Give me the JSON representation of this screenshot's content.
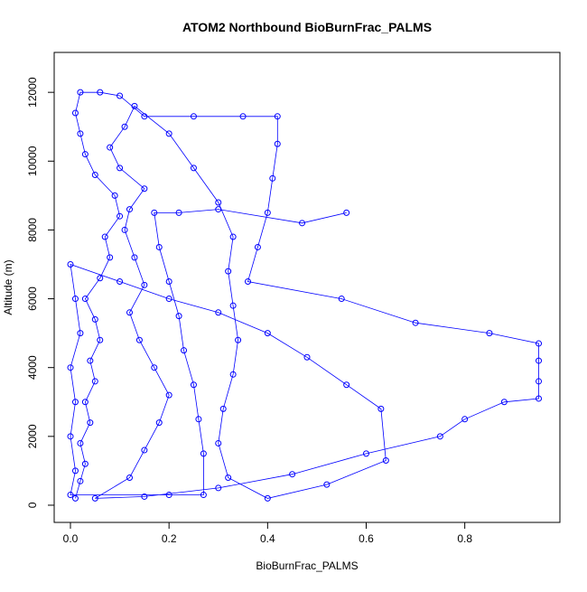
{
  "chart_data": {
    "type": "scatter",
    "title": "ATOM2 Northbound BioBurnFrac_PALMS",
    "x_label": "BioBurnFrac_PALMS",
    "y_label": "Altitude (m)",
    "color": "#0000ff",
    "xlim": [
      -0.033,
      0.993
    ],
    "ylim": [
      -500,
      13160
    ],
    "xticks": [
      {
        "value": 0,
        "label": "0.0"
      },
      {
        "value": 0.2,
        "label": "0.2"
      },
      {
        "value": 0.4,
        "label": "0.4"
      },
      {
        "value": 0.6,
        "label": "0.6"
      },
      {
        "value": 0.8,
        "label": "0.8"
      }
    ],
    "yticks": [
      0,
      2000,
      4000,
      6000,
      8000,
      10000,
      12000
    ],
    "x": [
      0.01,
      0.02,
      0.03,
      0.02,
      0.04,
      0.03,
      0.05,
      0.04,
      0.06,
      0.05,
      0.03,
      0.06,
      0.08,
      0.07,
      0.1,
      0.09,
      0.05,
      0.03,
      0.02,
      0.01,
      0.02,
      0.06,
      0.1,
      0.15,
      0.25,
      0.35,
      0.42,
      0.42,
      0.41,
      0.4,
      0.38,
      0.36,
      0.55,
      0.7,
      0.85,
      0.95,
      0.95,
      0.95,
      0.95,
      0.88,
      0.8,
      0.75,
      0.6,
      0.45,
      0.3,
      0.15,
      0.05,
      0.12,
      0.15,
      0.18,
      0.2,
      0.17,
      0.14,
      0.12,
      0.15,
      0.13,
      0.11,
      0.12,
      0.15,
      0.1,
      0.08,
      0.11,
      0.13,
      0.2,
      0.25,
      0.3,
      0.33,
      0.32,
      0.33,
      0.34,
      0.33,
      0.31,
      0.3,
      0.32,
      0.4,
      0.52,
      0.64,
      0.63,
      0.56,
      0.48,
      0.4,
      0.3,
      0.2,
      0.1,
      0.0,
      0.01,
      0.02,
      0.0,
      0.01,
      0.0,
      0.01,
      0.0,
      0.2,
      0.27,
      0.27,
      0.26,
      0.25,
      0.23,
      0.22,
      0.2,
      0.18,
      0.17,
      0.22,
      0.3,
      0.47,
      0.56
    ],
    "y": [
      200,
      700,
      1200,
      1800,
      2400,
      3000,
      3600,
      4200,
      4800,
      5400,
      6000,
      6600,
      7200,
      7800,
      8400,
      9000,
      9600,
      10200,
      10800,
      11400,
      12000,
      12000,
      11900,
      11300,
      11300,
      11300,
      11300,
      10500,
      9500,
      8500,
      7500,
      6500,
      6000,
      5300,
      5000,
      4700,
      4200,
      3600,
      3100,
      3000,
      2500,
      2000,
      1500,
      900,
      500,
      250,
      200,
      800,
      1600,
      2400,
      3200,
      4000,
      4800,
      5600,
      6400,
      7200,
      8000,
      8600,
      9200,
      9800,
      10400,
      11000,
      11600,
      10800,
      9800,
      8800,
      7800,
      6800,
      5800,
      4800,
      3800,
      2800,
      1800,
      800,
      200,
      600,
      1300,
      2800,
      3500,
      4300,
      5000,
      5600,
      6000,
      6500,
      7000,
      6000,
      5000,
      4000,
      3000,
      2000,
      1000,
      300,
      300,
      300,
      1500,
      2500,
      3500,
      4500,
      5500,
      6500,
      7500,
      8500,
      8500,
      8600,
      8200,
      8500
    ]
  }
}
